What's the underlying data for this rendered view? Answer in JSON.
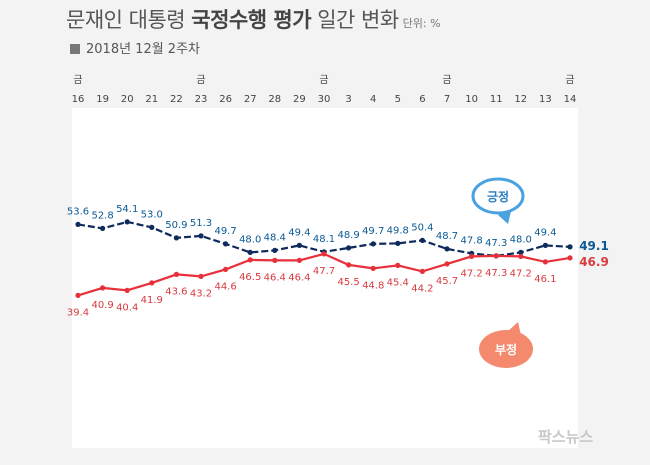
{
  "title": {
    "part1": "문재인 대통령 ",
    "part2": "국정수행 평가",
    "part3": " 일간 변화",
    "unit": "단위: %"
  },
  "subtitle": "2018년 12월 2주차",
  "watermark": "팍스뉴스",
  "chart_data": {
    "type": "line",
    "categories": [
      "16",
      "19",
      "20",
      "21",
      "22",
      "23",
      "26",
      "27",
      "28",
      "29",
      "30",
      "3",
      "4",
      "5",
      "6",
      "7",
      "10",
      "11",
      "12",
      "13",
      "14"
    ],
    "friday_markers": [
      {
        "index": 0,
        "label": "금"
      },
      {
        "index": 5,
        "label": "금"
      },
      {
        "index": 10,
        "label": "금"
      },
      {
        "index": 15,
        "label": "금"
      },
      {
        "index": 20,
        "label": "금"
      }
    ],
    "series": [
      {
        "name": "긍정",
        "color": "#0f2a5c",
        "label_color": "#0a5a96",
        "values": [
          53.6,
          52.8,
          54.1,
          53.0,
          50.9,
          51.3,
          49.7,
          48.0,
          48.4,
          49.4,
          48.1,
          48.9,
          49.7,
          49.8,
          50.4,
          48.7,
          47.8,
          47.3,
          48.0,
          49.4,
          49.1
        ],
        "labels": [
          "53.6",
          "52.8",
          "54.1",
          "53.0",
          "50.9",
          "51.3",
          "49.7",
          "48.0",
          "48.4",
          "49.4",
          "48.1",
          "48.9",
          "49.7",
          "49.8",
          "50.4",
          "48.7",
          "47.8",
          "47.3",
          "48.0",
          "49.4",
          "49.1"
        ]
      },
      {
        "name": "부정",
        "color": "#e8303a",
        "label_color": "#d83a3f",
        "values": [
          39.4,
          40.9,
          40.4,
          41.9,
          43.6,
          43.2,
          44.6,
          46.5,
          46.4,
          46.4,
          47.7,
          45.5,
          44.8,
          45.4,
          44.2,
          45.7,
          47.2,
          47.3,
          47.2,
          46.1,
          46.9
        ],
        "labels": [
          "39.4",
          "40.9",
          "40.4",
          "41.9",
          "43.6",
          "43.2",
          "44.6",
          "46.5",
          "46.4",
          "46.4",
          "47.7",
          "45.5",
          "44.8",
          "45.4",
          "44.2",
          "45.7",
          "47.2",
          "47.3",
          "47.2",
          "46.1",
          "46.9"
        ]
      }
    ],
    "bubble_pos_color": "#4aa3e0",
    "bubble_neg_color": "#f4896d"
  }
}
